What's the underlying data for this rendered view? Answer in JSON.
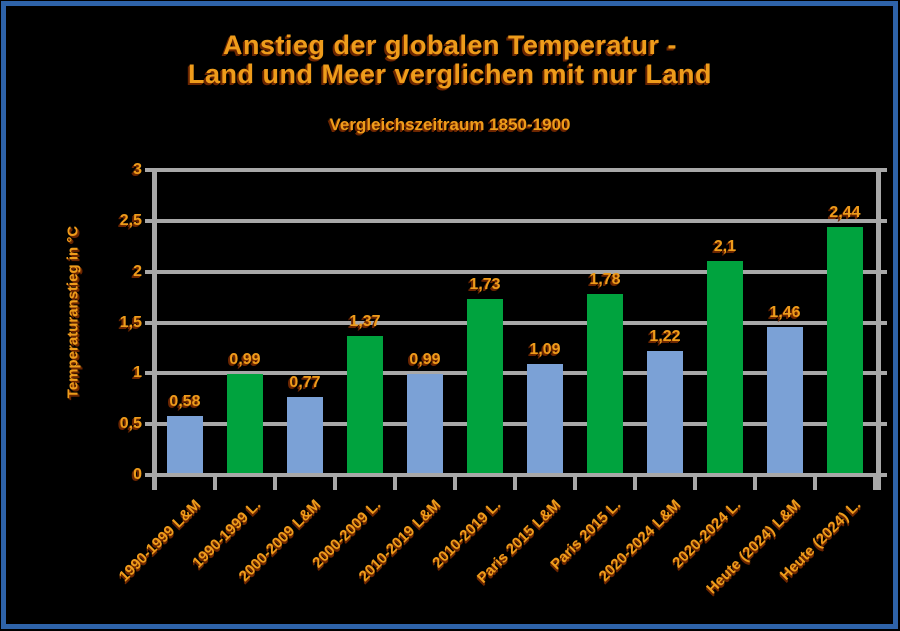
{
  "window": {
    "background": "#000000",
    "border_color": "#2E63A9"
  },
  "chart_data": {
    "type": "bar",
    "title_line1": "Anstieg der globalen Temperatur -",
    "title_line2": "Land und Meer verglichen mit nur Land",
    "subtitle": "Vergleichszeitraum 1850-1900",
    "ylabel": "Temperaturanstieg in °C",
    "xlabel": "",
    "ylim": [
      0,
      3
    ],
    "grid": true,
    "legend": "none",
    "text_color": "#EE9C1B",
    "gridline_color": "#A8A8A8",
    "palette": {
      "blue": "#7BA1D6",
      "green": "#00A33E"
    },
    "yticks": [
      {
        "value": 0,
        "label": "0"
      },
      {
        "value": 0.5,
        "label": "0,5"
      },
      {
        "value": 1,
        "label": "1"
      },
      {
        "value": 1.5,
        "label": "1,5"
      },
      {
        "value": 2,
        "label": "2"
      },
      {
        "value": 2.5,
        "label": "2,5"
      },
      {
        "value": 3,
        "label": "3"
      }
    ],
    "bars": [
      {
        "category": "1990-1999 L&M",
        "series": "Land & Meer",
        "value": 0.58,
        "label": "0,58",
        "color": "blue"
      },
      {
        "category": "1990-1999 L.",
        "series": "Land",
        "value": 0.99,
        "label": "0,99",
        "color": "green"
      },
      {
        "category": "2000-2009 L&M",
        "series": "Land & Meer",
        "value": 0.77,
        "label": "0,77",
        "color": "blue"
      },
      {
        "category": "2000-2009 L.",
        "series": "Land",
        "value": 1.37,
        "label": "1,37",
        "color": "green"
      },
      {
        "category": "2010-2019 L&M",
        "series": "Land & Meer",
        "value": 0.99,
        "label": "0,99",
        "color": "blue"
      },
      {
        "category": "2010-2019 L.",
        "series": "Land",
        "value": 1.73,
        "label": "1,73",
        "color": "green"
      },
      {
        "category": "Paris 2015 L&M",
        "series": "Land & Meer",
        "value": 1.09,
        "label": "1,09",
        "color": "blue"
      },
      {
        "category": "Paris 2015 L.",
        "series": "Land",
        "value": 1.78,
        "label": "1,78",
        "color": "green"
      },
      {
        "category": "2020-2024 L&M",
        "series": "Land & Meer",
        "value": 1.22,
        "label": "1,22",
        "color": "blue"
      },
      {
        "category": "2020-2024 L.",
        "series": "Land",
        "value": 2.1,
        "label": "2,1",
        "color": "green"
      },
      {
        "category": "Heute (2024) L&M",
        "series": "Land & Meer",
        "value": 1.46,
        "label": "1,46",
        "color": "blue"
      },
      {
        "category": "Heute (2024) L.",
        "series": "Land",
        "value": 2.44,
        "label": "2,44",
        "color": "green"
      }
    ]
  }
}
